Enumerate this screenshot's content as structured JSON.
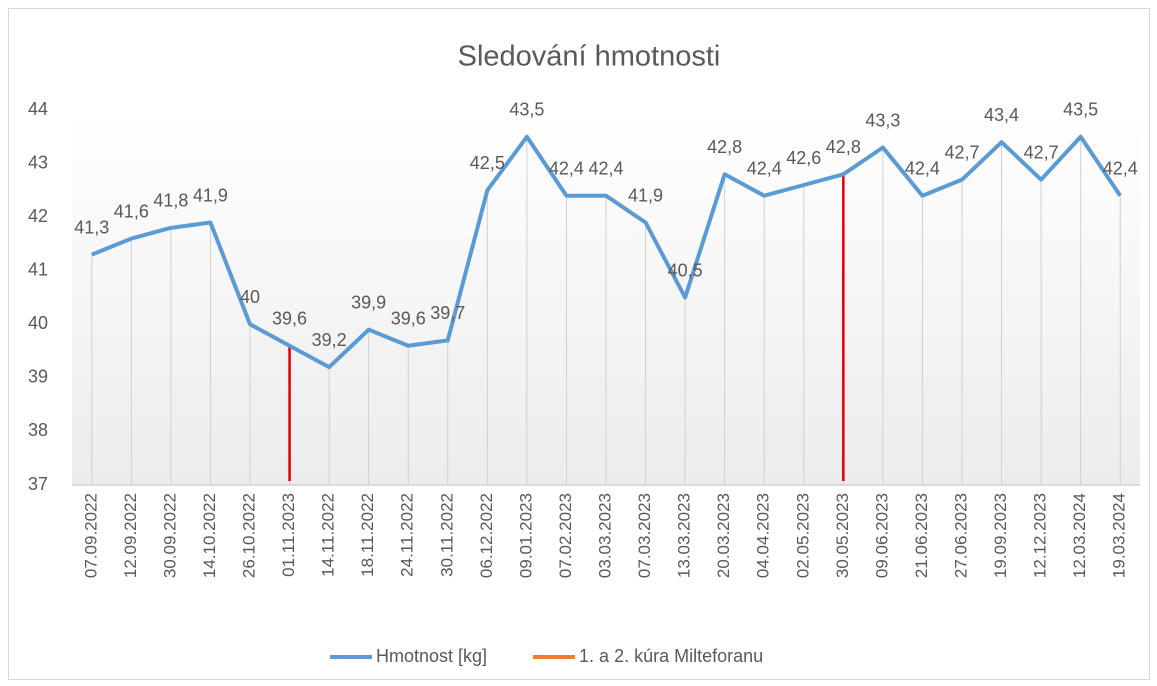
{
  "chart_data": {
    "type": "line",
    "title": "Sledování hmotnosti",
    "categories": [
      "07.09.2022",
      "12.09.2022",
      "30.09.2022",
      "14.10.2022",
      "26.10.2022",
      "01.11.2023",
      "14.11.2022",
      "18.11.2022",
      "24.11.2022",
      "30.11.2022",
      "06.12.2022",
      "09.01.2023",
      "07.02.2023",
      "03.03.2023",
      "07.03.2023",
      "13.03.2023",
      "20.03.2023",
      "04.04.2023",
      "02.05.2023",
      "30.05.2023",
      "09.06.2023",
      "21.06.2023",
      "27.06.2023",
      "19.09.2023",
      "12.12.2023",
      "12.03.2024",
      "19.03.2024"
    ],
    "series": [
      {
        "name": "Hmotnost [kg]",
        "color": "#5b9bd5",
        "type": "line",
        "values": [
          41.3,
          41.6,
          41.8,
          41.9,
          40,
          39.6,
          39.2,
          39.9,
          39.6,
          39.7,
          42.5,
          43.5,
          42.4,
          42.4,
          41.9,
          40.5,
          42.8,
          42.4,
          42.6,
          42.8,
          43.3,
          42.4,
          42.7,
          43.4,
          42.7,
          43.5,
          42.4
        ],
        "value_labels": [
          "41,3",
          "41,6",
          "41,8",
          "41,9",
          "40",
          "39,6",
          "39,2",
          "39,9",
          "39,6",
          "39,7",
          "42,5",
          "43,5",
          "42,4",
          "42,4",
          "41,9",
          "40,5",
          "42,8",
          "42,4",
          "42,6",
          "42,8",
          "43,3",
          "42,4",
          "42,7",
          "43,4",
          "42,7",
          "43,5",
          "42,4"
        ]
      },
      {
        "name": "1. a 2. kúra Milteforanu",
        "color": "#ed7d31",
        "line_color": "#e00000",
        "type": "drop",
        "values": [
          null,
          null,
          null,
          null,
          null,
          39.6,
          null,
          null,
          null,
          null,
          null,
          null,
          null,
          null,
          null,
          null,
          null,
          null,
          null,
          42.8,
          null,
          null,
          null,
          null,
          null,
          null,
          null
        ]
      }
    ],
    "ylim": [
      37,
      44
    ],
    "yticks": [
      37,
      38,
      39,
      40,
      41,
      42,
      43,
      44
    ],
    "grid": true
  }
}
